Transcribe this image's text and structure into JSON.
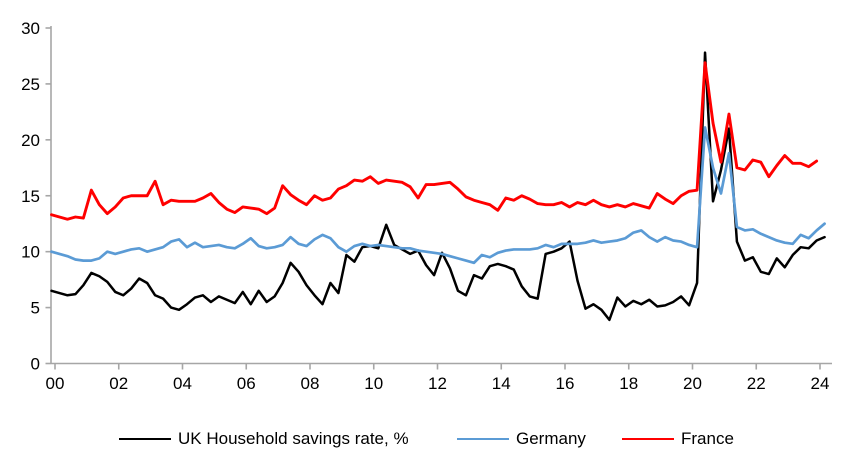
{
  "chart_data": {
    "type": "line",
    "title": "",
    "frequency": "quarterly",
    "grid": false,
    "legend_position": "bottom",
    "x_tick_labels": [
      "00",
      "02",
      "04",
      "06",
      "08",
      "10",
      "12",
      "14",
      "16",
      "18",
      "20",
      "22",
      "24"
    ],
    "y_ticks": [
      0,
      5,
      10,
      15,
      20,
      25,
      30
    ],
    "ylim": [
      0,
      30
    ],
    "xlabel": "",
    "ylabel": "",
    "series": [
      {
        "name": "UK Household savings rate, %",
        "color": "#000000",
        "values": [
          6.5,
          6.3,
          6.1,
          6.2,
          7.0,
          8.1,
          7.8,
          7.3,
          6.4,
          6.1,
          6.7,
          7.6,
          7.2,
          6.1,
          5.8,
          5.0,
          4.8,
          5.3,
          5.9,
          6.1,
          5.5,
          6.0,
          5.7,
          5.4,
          6.4,
          5.3,
          6.5,
          5.5,
          6.0,
          7.2,
          9.0,
          8.2,
          7.0,
          6.1,
          5.3,
          7.2,
          6.3,
          9.7,
          9.1,
          10.4,
          10.5,
          10.3,
          12.4,
          10.6,
          10.2,
          9.8,
          10.1,
          8.8,
          7.9,
          9.9,
          8.5,
          6.5,
          6.1,
          7.9,
          7.6,
          8.7,
          8.9,
          8.7,
          8.4,
          6.9,
          6.0,
          5.8,
          9.8,
          10.0,
          10.3,
          10.9,
          7.4,
          4.9,
          5.3,
          4.8,
          3.9,
          5.9,
          5.1,
          5.6,
          5.3,
          5.7,
          5.1,
          5.2,
          5.5,
          6.0,
          5.2,
          7.2,
          27.8,
          14.5,
          17.3,
          21.0,
          10.9,
          9.2,
          9.5,
          8.2,
          8.0,
          9.4,
          8.6,
          9.7,
          10.4,
          10.3,
          11.0,
          11.3
        ]
      },
      {
        "name": "Germany",
        "color": "#5B9BD5",
        "values": [
          10.0,
          9.8,
          9.6,
          9.3,
          9.2,
          9.2,
          9.4,
          10.0,
          9.8,
          10.0,
          10.2,
          10.3,
          10.0,
          10.2,
          10.4,
          10.9,
          11.1,
          10.4,
          10.8,
          10.4,
          10.5,
          10.6,
          10.4,
          10.3,
          10.7,
          11.2,
          10.5,
          10.3,
          10.4,
          10.6,
          11.3,
          10.7,
          10.5,
          11.1,
          11.5,
          11.2,
          10.4,
          10.0,
          10.5,
          10.7,
          10.5,
          10.6,
          10.5,
          10.4,
          10.3,
          10.3,
          10.1,
          10.0,
          9.9,
          9.8,
          9.6,
          9.4,
          9.2,
          9.0,
          9.7,
          9.5,
          9.9,
          10.1,
          10.2,
          10.2,
          10.2,
          10.3,
          10.6,
          10.4,
          10.7,
          10.7,
          10.7,
          10.8,
          11.0,
          10.8,
          10.9,
          11.0,
          11.2,
          11.7,
          11.9,
          11.3,
          10.9,
          11.3,
          11.0,
          10.9,
          10.6,
          10.4,
          21.1,
          17.5,
          15.2,
          18.8,
          12.2,
          11.9,
          12.0,
          11.6,
          11.3,
          11.0,
          10.8,
          10.7,
          11.5,
          11.2,
          11.9,
          12.5
        ]
      },
      {
        "name": "France",
        "color": "#FF0000",
        "values": [
          13.3,
          13.1,
          12.9,
          13.1,
          13.0,
          15.5,
          14.2,
          13.4,
          14.0,
          14.8,
          15.0,
          15.0,
          15.0,
          16.3,
          14.2,
          14.6,
          14.5,
          14.5,
          14.5,
          14.8,
          15.2,
          14.4,
          13.8,
          13.5,
          14.0,
          13.9,
          13.8,
          13.4,
          13.9,
          15.9,
          15.1,
          14.6,
          14.2,
          15.0,
          14.6,
          14.8,
          15.6,
          15.9,
          16.4,
          16.3,
          16.7,
          16.1,
          16.4,
          16.3,
          16.2,
          15.8,
          14.8,
          16.0,
          16.0,
          16.1,
          16.2,
          15.6,
          14.9,
          14.6,
          14.4,
          14.2,
          13.7,
          14.8,
          14.6,
          15.0,
          14.7,
          14.3,
          14.2,
          14.2,
          14.4,
          14.0,
          14.4,
          14.2,
          14.6,
          14.2,
          14.0,
          14.2,
          14.0,
          14.3,
          14.1,
          13.9,
          15.2,
          14.7,
          14.3,
          15.0,
          15.4,
          15.5,
          26.9,
          21.5,
          18.0,
          22.3,
          17.5,
          17.3,
          18.2,
          18.0,
          16.7,
          17.7,
          18.6,
          17.9,
          17.9,
          17.6,
          18.1
        ]
      }
    ]
  }
}
